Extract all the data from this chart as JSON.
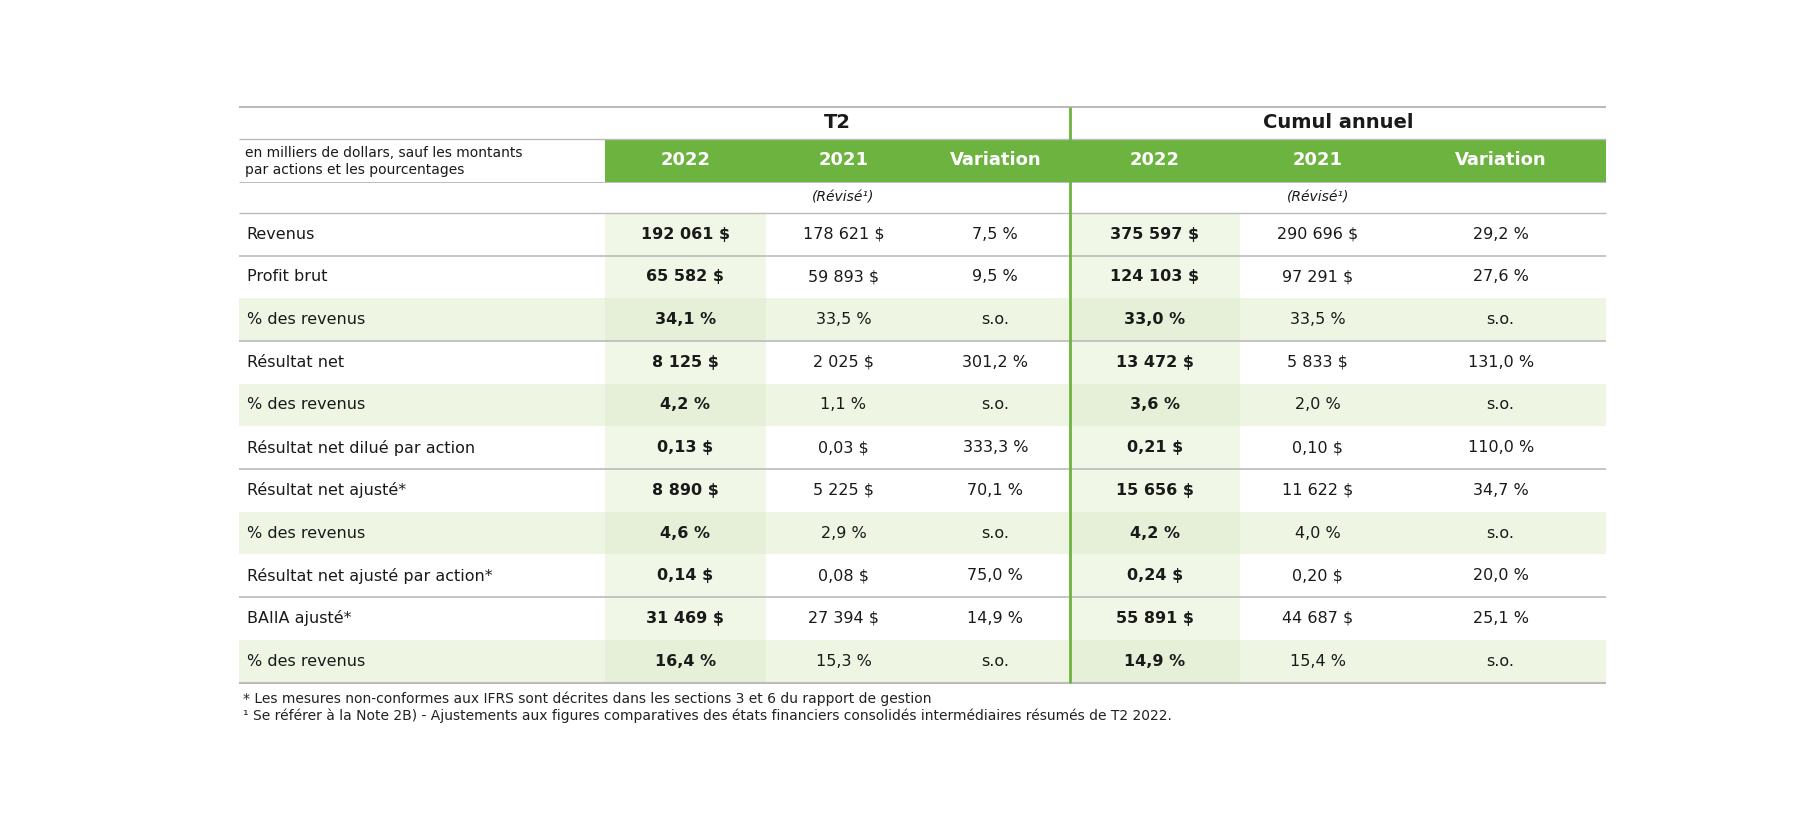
{
  "title_t2": "T2",
  "title_cumul": "Cumul annuel",
  "header_label_line1": "en milliers de dollars, sauf les montants",
  "header_label_line2": "par actions et les pourcentages",
  "col_headers": [
    "2022",
    "2021",
    "Variation",
    "2022",
    "2021",
    "Variation"
  ],
  "subheader_2021_t2": "(Révisé¹)",
  "subheader_2021_cumul": "(Révisé¹)",
  "rows": [
    {
      "label": "Revenus",
      "t2_2022": "192 061 $",
      "t2_2021": "178 621 $",
      "t2_var": "7,5 %",
      "ca_2022": "375 597 $",
      "ca_2021": "290 696 $",
      "ca_var": "29,2 %",
      "bold_2022": true,
      "shaded": false,
      "separator_before": false
    },
    {
      "label": "Profit brut",
      "t2_2022": "65 582 $",
      "t2_2021": "59 893 $",
      "t2_var": "9,5 %",
      "ca_2022": "124 103 $",
      "ca_2021": "97 291 $",
      "ca_var": "27,6 %",
      "bold_2022": true,
      "shaded": false,
      "separator_before": true
    },
    {
      "label": "% des revenus",
      "t2_2022": "34,1 %",
      "t2_2021": "33,5 %",
      "t2_var": "s.o.",
      "ca_2022": "33,0 %",
      "ca_2021": "33,5 %",
      "ca_var": "s.o.",
      "bold_2022": true,
      "shaded": true,
      "separator_before": false
    },
    {
      "label": "Résultat net",
      "t2_2022": "8 125 $",
      "t2_2021": "2 025 $",
      "t2_var": "301,2 %",
      "ca_2022": "13 472 $",
      "ca_2021": "5 833 $",
      "ca_var": "131,0 %",
      "bold_2022": true,
      "shaded": false,
      "separator_before": true
    },
    {
      "label": "% des revenus",
      "t2_2022": "4,2 %",
      "t2_2021": "1,1 %",
      "t2_var": "s.o.",
      "ca_2022": "3,6 %",
      "ca_2021": "2,0 %",
      "ca_var": "s.o.",
      "bold_2022": true,
      "shaded": true,
      "separator_before": false
    },
    {
      "label": "Résultat net dilué par action",
      "t2_2022": "0,13 $",
      "t2_2021": "0,03 $",
      "t2_var": "333,3 %",
      "ca_2022": "0,21 $",
      "ca_2021": "0,10 $",
      "ca_var": "110,0 %",
      "bold_2022": true,
      "shaded": false,
      "separator_before": false
    },
    {
      "label": "Résultat net ajusté*",
      "t2_2022": "8 890 $",
      "t2_2021": "5 225 $",
      "t2_var": "70,1 %",
      "ca_2022": "15 656 $",
      "ca_2021": "11 622 $",
      "ca_var": "34,7 %",
      "bold_2022": true,
      "shaded": false,
      "separator_before": true
    },
    {
      "label": "% des revenus",
      "t2_2022": "4,6 %",
      "t2_2021": "2,9 %",
      "t2_var": "s.o.",
      "ca_2022": "4,2 %",
      "ca_2021": "4,0 %",
      "ca_var": "s.o.",
      "bold_2022": true,
      "shaded": true,
      "separator_before": false
    },
    {
      "label": "Résultat net ajusté par action*",
      "t2_2022": "0,14 $",
      "t2_2021": "0,08 $",
      "t2_var": "75,0 %",
      "ca_2022": "0,24 $",
      "ca_2021": "0,20 $",
      "ca_var": "20,0 %",
      "bold_2022": true,
      "shaded": false,
      "separator_before": false
    },
    {
      "label": "BAIIA ajusté*",
      "t2_2022": "31 469 $",
      "t2_2021": "27 394 $",
      "t2_var": "14,9 %",
      "ca_2022": "55 891 $",
      "ca_2021": "44 687 $",
      "ca_var": "25,1 %",
      "bold_2022": true,
      "shaded": false,
      "separator_before": true
    },
    {
      "label": "% des revenus",
      "t2_2022": "16,4 %",
      "t2_2021": "15,3 %",
      "t2_var": "s.o.",
      "ca_2022": "14,9 %",
      "ca_2021": "15,4 %",
      "ca_var": "s.o.",
      "bold_2022": true,
      "shaded": true,
      "separator_before": false
    }
  ],
  "footnotes": [
    "* Les mesures non-conformes aux IFRS sont décrites dans les sections 3 et 6 du rapport de gestion",
    "¹ Se référer à la Note 2B) - Ajustements aux figures comparatives des états financiers consolidés intermédiaires résumés de T2 2022."
  ],
  "green_header_color": "#6db33f",
  "green_header_text_color": "#ffffff",
  "shaded_row_color": "#eef5e3",
  "bold_col_bg": "#f0f7e6",
  "shaded_bold_col_bg": "#e6f0d8",
  "separator_color": "#bbbbbb",
  "white_bg": "#ffffff",
  "vertical_divider_color": "#6db33f",
  "text_color": "#1a1a1a",
  "footnote_color": "#222222",
  "fig_width": 18.0,
  "fig_height": 8.24,
  "dpi": 100,
  "title_fontsize": 14,
  "header_fontsize": 13,
  "cell_fontsize": 11.5,
  "label_fontsize": 11.5,
  "footnote_fontsize": 10,
  "subheader_fontsize": 10
}
